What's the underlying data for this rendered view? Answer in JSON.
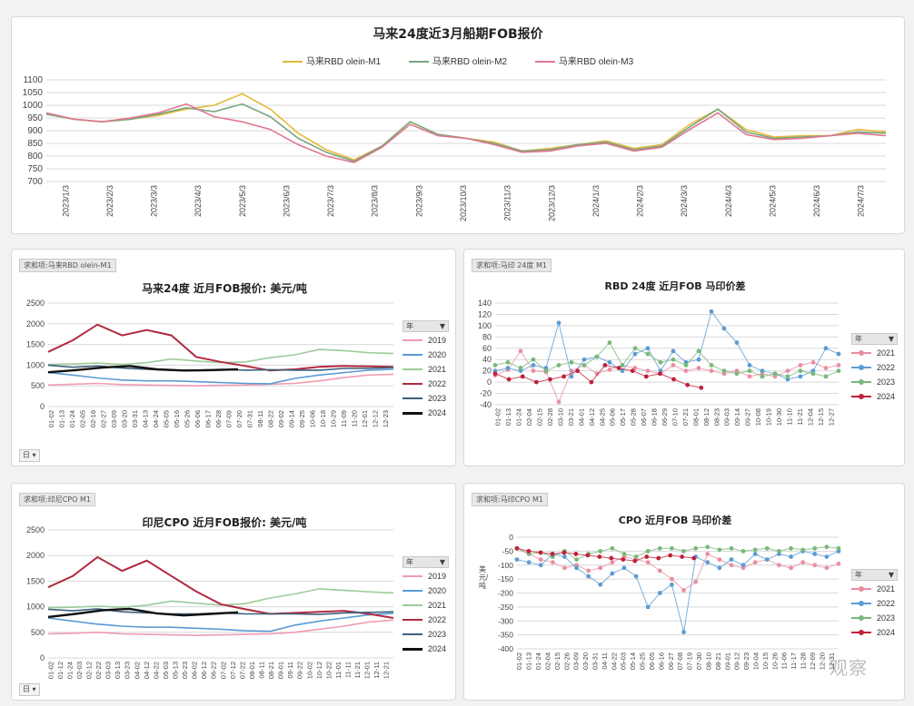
{
  "colors": {
    "m1": "#e6b93a",
    "m2": "#7aa680",
    "m3": "#e0788e",
    "y2019": "#f29cb0",
    "y2020": "#5b9bd5",
    "y2021": "#9ccc9a",
    "y2022": "#b22a3f",
    "y2023": "#3d607e",
    "y2024": "#111111",
    "d2021": "#e98fa0",
    "d2022": "#5b9bd5",
    "d2023": "#79b87a",
    "d2024": "#c0213b"
  },
  "chart_data": [
    {
      "type": "line",
      "title": "马来24度近3月船期FOB报价",
      "legend": [
        "马来RBD olein-M1",
        "马来RBD olein-M2",
        "马来RBD olein-M3"
      ],
      "ylim": [
        700,
        1100
      ],
      "yticks": [
        "1100",
        "1050",
        "1000",
        "950",
        "900",
        "850",
        "800",
        "750",
        "700"
      ],
      "xticks": [
        "2023/1/3",
        "2023/2/3",
        "2023/3/3",
        "2023/4/3",
        "2023/5/3",
        "2023/6/3",
        "2023/7/3",
        "2023/8/3",
        "2023/9/3",
        "2023/10/3",
        "2023/11/3",
        "2023/12/3",
        "2024/1/3",
        "2024/2/3",
        "2024/3/3",
        "2024/4/3",
        "2024/5/3",
        "2024/6/3",
        "2024/7/3"
      ],
      "series": [
        {
          "name": "马来RBD olein-M1",
          "values": [
            965,
            945,
            935,
            945,
            960,
            985,
            1000,
            1045,
            985,
            890,
            825,
            785,
            840,
            935,
            885,
            870,
            855,
            820,
            830,
            845,
            860,
            830,
            845,
            925,
            985,
            905,
            875,
            880,
            880,
            905,
            895
          ]
        },
        {
          "name": "马来RBD olein-M2",
          "values": [
            965,
            945,
            935,
            945,
            965,
            990,
            975,
            1005,
            955,
            870,
            815,
            780,
            840,
            935,
            885,
            870,
            850,
            820,
            825,
            845,
            855,
            825,
            840,
            915,
            985,
            895,
            870,
            875,
            880,
            895,
            890
          ]
        },
        {
          "name": "马来RBD olein-M3",
          "values": [
            970,
            945,
            935,
            950,
            970,
            1005,
            955,
            935,
            905,
            845,
            800,
            775,
            835,
            925,
            880,
            870,
            845,
            815,
            820,
            840,
            850,
            820,
            835,
            905,
            970,
            885,
            865,
            870,
            880,
            890,
            880
          ]
        }
      ]
    },
    {
      "type": "line",
      "pivot_tag": "求和项:马来RBD olein-M1",
      "title": "马来24度 近月FOB报价: 美元/吨",
      "ylim": [
        0,
        2500
      ],
      "yticks": [
        "2500",
        "2000",
        "1500",
        "1000",
        "500",
        "0"
      ],
      "xticks": [
        "01-02",
        "01-13",
        "01-24",
        "02-05",
        "02-16",
        "02-27",
        "03-09",
        "03-20",
        "03-31",
        "04-13",
        "04-24",
        "05-05",
        "05-16",
        "05-26",
        "06-06",
        "06-17",
        "06-28",
        "07-09",
        "07-20",
        "07-31",
        "08-11",
        "08-22",
        "09-02",
        "09-14",
        "09-25",
        "10-06",
        "10-18",
        "10-29",
        "11-09",
        "11-20",
        "12-01",
        "12-12",
        "12-23"
      ],
      "legend_header": "年",
      "filter_label": "日",
      "series": [
        {
          "name": "2019",
          "values": [
            520,
            540,
            560,
            530,
            520,
            510,
            500,
            510,
            520,
            540,
            560,
            620,
            700,
            760,
            780
          ]
        },
        {
          "name": "2020",
          "values": [
            820,
            760,
            690,
            640,
            620,
            620,
            600,
            580,
            560,
            550,
            680,
            760,
            820,
            880,
            900
          ]
        },
        {
          "name": "2021",
          "values": [
            1020,
            1030,
            1050,
            1020,
            1060,
            1150,
            1100,
            1060,
            1080,
            1180,
            1250,
            1380,
            1350,
            1300,
            1280
          ]
        },
        {
          "name": "2022",
          "values": [
            1320,
            1600,
            1980,
            1720,
            1850,
            1720,
            1200,
            1080,
            980,
            870,
            900,
            960,
            980,
            970,
            960
          ]
        },
        {
          "name": "2023",
          "values": [
            1000,
            950,
            980,
            930,
            900,
            880,
            880,
            900,
            880,
            890,
            880,
            880,
            920,
            920,
            940
          ]
        },
        {
          "name": "2024",
          "values": [
            830,
            880,
            940,
            980,
            900,
            870,
            880,
            900
          ]
        }
      ]
    },
    {
      "type": "scatter",
      "pivot_tag": "求和项:马印 24度 M1",
      "title": "RBD 24度 近月FOB 马印价差",
      "ylim": [
        -40,
        140
      ],
      "yticks": [
        "140",
        "120",
        "100",
        "80",
        "60",
        "40",
        "20",
        "0",
        "-20",
        "-40"
      ],
      "xticks": [
        "01-02",
        "01-13",
        "01-24",
        "02-04",
        "02-15",
        "02-28",
        "03-10",
        "03-21",
        "04-01",
        "04-12",
        "04-25",
        "05-06",
        "05-17",
        "05-28",
        "06-07",
        "06-18",
        "06-29",
        "07-10",
        "07-21",
        "08-01",
        "08-12",
        "08-23",
        "09-03",
        "09-14",
        "09-27",
        "10-08",
        "10-19",
        "10-30",
        "11-10",
        "11-21",
        "12-04",
        "12-15",
        "12-27"
      ],
      "legend_header": "年",
      "series": [
        {
          "name": "2021",
          "values": [
            12,
            22,
            55,
            20,
            18,
            -35,
            20,
            30,
            15,
            22,
            30,
            25,
            20,
            15,
            30,
            20,
            25,
            20,
            15,
            20,
            10,
            15,
            10,
            20,
            30,
            35,
            25,
            30
          ]
        },
        {
          "name": "2022",
          "values": [
            20,
            25,
            20,
            30,
            25,
            105,
            10,
            40,
            45,
            35,
            20,
            50,
            60,
            20,
            55,
            35,
            40,
            125,
            95,
            70,
            30,
            20,
            15,
            5,
            10,
            20,
            60,
            50
          ]
        },
        {
          "name": "2023",
          "values": [
            30,
            35,
            25,
            40,
            20,
            30,
            35,
            30,
            45,
            70,
            30,
            60,
            50,
            35,
            40,
            30,
            55,
            30,
            20,
            15,
            20,
            10,
            15,
            10,
            20,
            15,
            10,
            20
          ]
        },
        {
          "name": "2024",
          "values": [
            15,
            5,
            10,
            0,
            5,
            10,
            20,
            0,
            30,
            25,
            20,
            10,
            15,
            5,
            -5,
            -10
          ]
        }
      ]
    },
    {
      "type": "line",
      "pivot_tag": "求和项:印尼CPO M1",
      "title": "印尼CPO 近月FOB报价: 美元/吨",
      "ylim": [
        0,
        2500
      ],
      "yticks": [
        "2500",
        "2000",
        "1500",
        "1000",
        "500",
        "0"
      ],
      "xticks": [
        "01-02",
        "01-12",
        "01-24",
        "02-03",
        "02-12",
        "02-22",
        "03-03",
        "03-13",
        "03-23",
        "04-02",
        "04-12",
        "04-22",
        "05-03",
        "05-13",
        "05-23",
        "06-02",
        "06-12",
        "06-22",
        "07-02",
        "07-12",
        "07-22",
        "08-01",
        "08-11",
        "08-21",
        "09-01",
        "09-11",
        "09-22",
        "10-02",
        "10-12",
        "10-22",
        "11-01",
        "11-11",
        "11-21",
        "12-01",
        "12-11",
        "12-21"
      ],
      "legend_header": "年",
      "filter_label": "日",
      "series": [
        {
          "name": "2019",
          "values": [
            470,
            480,
            500,
            470,
            460,
            450,
            440,
            450,
            460,
            470,
            500,
            560,
            620,
            700,
            740
          ]
        },
        {
          "name": "2020",
          "values": [
            780,
            720,
            660,
            620,
            600,
            600,
            580,
            560,
            530,
            520,
            640,
            720,
            780,
            840,
            870
          ]
        },
        {
          "name": "2021",
          "values": [
            980,
            990,
            1010,
            990,
            1030,
            1110,
            1070,
            1030,
            1060,
            1170,
            1250,
            1350,
            1320,
            1290,
            1270
          ]
        },
        {
          "name": "2022",
          "values": [
            1380,
            1600,
            1970,
            1700,
            1900,
            1600,
            1300,
            1050,
            950,
            860,
            880,
            900,
            920,
            860,
            780
          ]
        },
        {
          "name": "2023",
          "values": [
            950,
            920,
            960,
            900,
            880,
            860,
            860,
            880,
            860,
            860,
            860,
            850,
            880,
            890,
            900
          ]
        },
        {
          "name": "2024",
          "values": [
            800,
            860,
            930,
            960,
            870,
            830,
            860,
            890
          ]
        }
      ]
    },
    {
      "type": "scatter",
      "pivot_tag": "求和项:马印CPO M1",
      "title": "CPO 近月FOB 马印价差",
      "ylabel": "美元/吨",
      "ylim": [
        -400,
        0
      ],
      "yticks": [
        "0",
        "-50",
        "-100",
        "-150",
        "-200",
        "-250",
        "-300",
        "-350",
        "-400"
      ],
      "xticks": [
        "01-02",
        "01-13",
        "01-24",
        "02-04",
        "02-15",
        "02-26",
        "03-09",
        "03-20",
        "03-31",
        "04-11",
        "04-22",
        "05-03",
        "05-14",
        "05-25",
        "06-05",
        "06-16",
        "06-27",
        "07-08",
        "07-19",
        "07-30",
        "08-10",
        "08-21",
        "09-01",
        "09-12",
        "09-23",
        "10-04",
        "10-15",
        "10-26",
        "11-06",
        "11-17",
        "11-28",
        "12-09",
        "12-20",
        "12-31"
      ],
      "legend_header": "年",
      "series": [
        {
          "name": "2021",
          "values": [
            -40,
            -60,
            -80,
            -90,
            -110,
            -100,
            -120,
            -110,
            -90,
            -70,
            -80,
            -90,
            -120,
            -150,
            -190,
            -160,
            -60,
            -80,
            -100,
            -110,
            -90,
            -80,
            -100,
            -110,
            -90,
            -100,
            -110,
            -95
          ]
        },
        {
          "name": "2022",
          "values": [
            -80,
            -90,
            -100,
            -60,
            -70,
            -110,
            -140,
            -170,
            -130,
            -110,
            -140,
            -250,
            -200,
            -170,
            -340,
            -70,
            -90,
            -110,
            -80,
            -100,
            -60,
            -80,
            -60,
            -70,
            -50,
            -60,
            -70,
            -50
          ]
        },
        {
          "name": "2023",
          "values": [
            -40,
            -60,
            -55,
            -70,
            -50,
            -80,
            -60,
            -50,
            -40,
            -60,
            -70,
            -50,
            -40,
            -40,
            -50,
            -40,
            -35,
            -45,
            -40,
            -50,
            -45,
            -40,
            -50,
            -40,
            -45,
            -40,
            -35,
            -40
          ]
        },
        {
          "name": "2024",
          "values": [
            -40,
            -50,
            -55,
            -60,
            -55,
            -60,
            -65,
            -70,
            -75,
            -80,
            -85,
            -70,
            -75,
            -65,
            -70,
            -75
          ]
        }
      ]
    }
  ],
  "watermark": "观察"
}
